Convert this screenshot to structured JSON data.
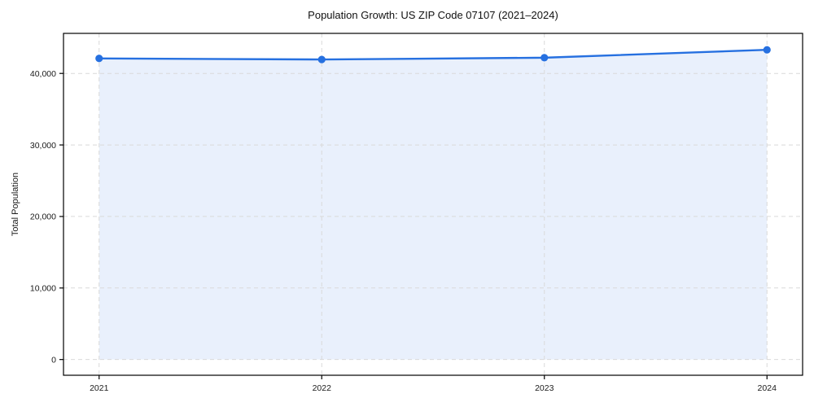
{
  "chart_data": {
    "type": "line",
    "title": "Population Growth: US ZIP Code 07107 (2021–2024)",
    "xlabel": "",
    "ylabel": "Total Population",
    "x": [
      2021,
      2022,
      2023,
      2024
    ],
    "series": [
      {
        "name": "Total Population",
        "values": [
          42100,
          41950,
          42200,
          43300
        ]
      }
    ],
    "xticks": {
      "values": [
        2021,
        2022,
        2023,
        2024
      ],
      "labels": [
        "2021",
        "2022",
        "2023",
        "2024"
      ]
    },
    "yticks": {
      "values": [
        0,
        10000,
        20000,
        30000,
        40000
      ],
      "labels": [
        "0",
        "10,000",
        "20,000",
        "30,000",
        "40,000"
      ]
    },
    "xlim": [
      2020.84,
      2024.16
    ],
    "ylim": [
      -2200,
      45600
    ],
    "grid": true,
    "grid_style": "dashed",
    "legend": false,
    "fill_to_zero": true,
    "marker": "circle",
    "colors": {
      "line": "#2670e0",
      "marker": "#2670e0",
      "fill": "rgba(38,112,224,0.10)",
      "grid": "#d9d9d9",
      "axis": "#000000",
      "text": "#1a1a1a",
      "background": "#ffffff"
    }
  }
}
